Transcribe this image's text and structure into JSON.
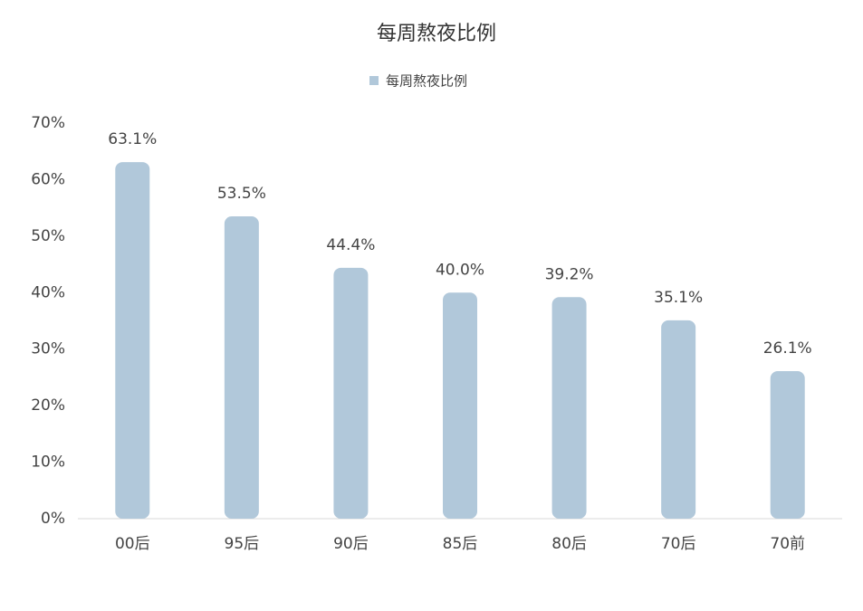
{
  "chart_data": {
    "type": "bar",
    "title": "每周熬夜比例",
    "categories": [
      "00后",
      "95后",
      "90后",
      "85后",
      "80后",
      "70后",
      "70前"
    ],
    "series": [
      {
        "name": "每周熬夜比例",
        "color": "#b1c8da",
        "values": [
          63.1,
          53.5,
          44.4,
          40.0,
          39.2,
          35.1,
          26.1
        ],
        "value_labels": [
          "63.1%",
          "53.5%",
          "44.4%",
          "40.0%",
          "39.2%",
          "35.1%",
          "26.1%"
        ]
      }
    ],
    "ylim": [
      0,
      70
    ],
    "yticks": [
      {
        "value": 0,
        "label": "0%"
      },
      {
        "value": 10,
        "label": "10%"
      },
      {
        "value": 20,
        "label": "20%"
      },
      {
        "value": 30,
        "label": "30%"
      },
      {
        "value": 40,
        "label": "40%"
      },
      {
        "value": 50,
        "label": "50%"
      },
      {
        "value": 60,
        "label": "60%"
      },
      {
        "value": 70,
        "label": "70%"
      }
    ],
    "grid": false
  }
}
